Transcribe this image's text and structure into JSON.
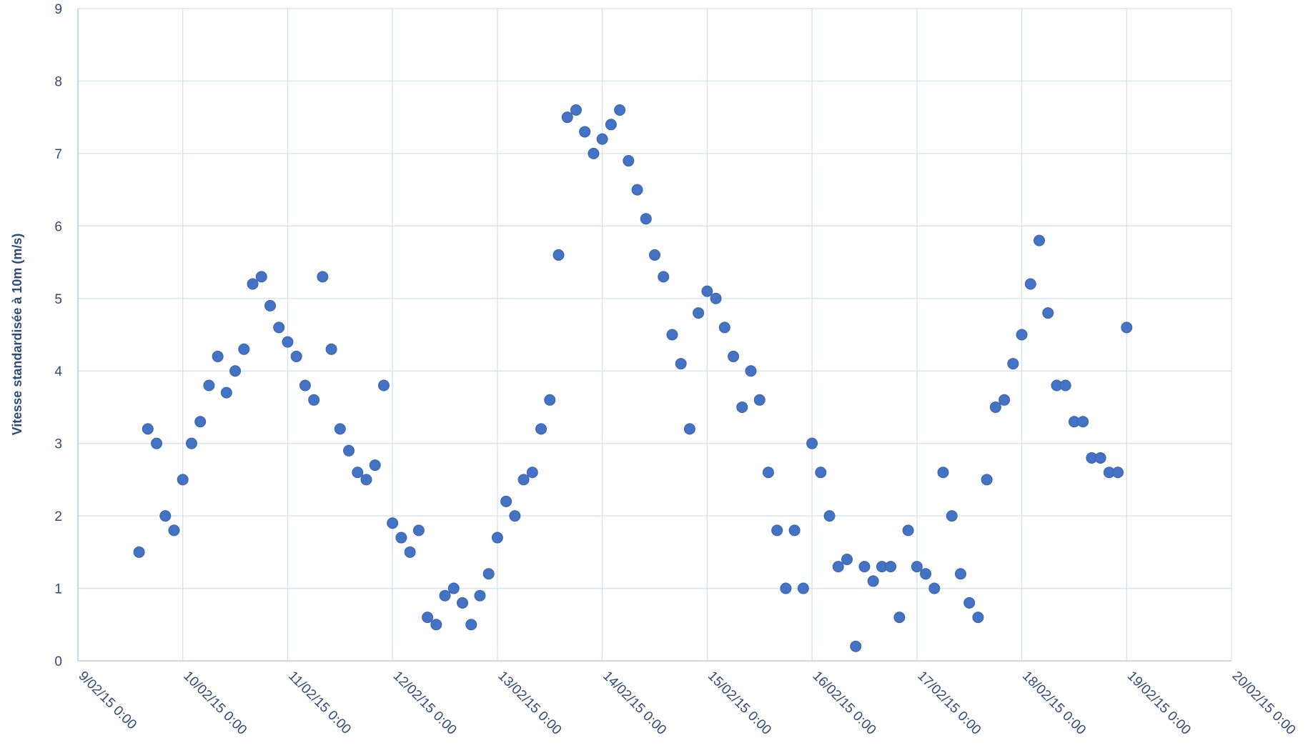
{
  "chart_data": {
    "type": "scatter",
    "y_label": "Vitesse standardisée à 10m (m/s)",
    "color": "#4472c4",
    "grid": true,
    "ylim": [
      0,
      9
    ],
    "yticks": [
      0,
      1,
      2,
      3,
      4,
      5,
      6,
      7,
      8,
      9
    ],
    "xlim": [
      "2015-02-09T00:00",
      "2015-02-20T00:00"
    ],
    "xticks": [
      {
        "value": "2015-02-09T00:00",
        "label": "9/02/15 0:00"
      },
      {
        "value": "2015-02-10T00:00",
        "label": "10/02/15 0:00"
      },
      {
        "value": "2015-02-11T00:00",
        "label": "11/02/15 0:00"
      },
      {
        "value": "2015-02-12T00:00",
        "label": "12/02/15 0:00"
      },
      {
        "value": "2015-02-13T00:00",
        "label": "13/02/15 0:00"
      },
      {
        "value": "2015-02-14T00:00",
        "label": "14/02/15 0:00"
      },
      {
        "value": "2015-02-15T00:00",
        "label": "15/02/15 0:00"
      },
      {
        "value": "2015-02-16T00:00",
        "label": "16/02/15 0:00"
      },
      {
        "value": "2015-02-17T00:00",
        "label": "17/02/15 0:00"
      },
      {
        "value": "2015-02-18T00:00",
        "label": "18/02/15 0:00"
      },
      {
        "value": "2015-02-19T00:00",
        "label": "19/02/15 0:00"
      },
      {
        "value": "2015-02-20T00:00",
        "label": "20/02/15 0:00"
      }
    ],
    "x": [
      "2015-02-09T14:00",
      "2015-02-09T16:00",
      "2015-02-09T18:00",
      "2015-02-09T20:00",
      "2015-02-09T22:00",
      "2015-02-10T00:00",
      "2015-02-10T02:00",
      "2015-02-10T04:00",
      "2015-02-10T06:00",
      "2015-02-10T08:00",
      "2015-02-10T10:00",
      "2015-02-10T12:00",
      "2015-02-10T14:00",
      "2015-02-10T16:00",
      "2015-02-10T18:00",
      "2015-02-10T20:00",
      "2015-02-10T22:00",
      "2015-02-11T00:00",
      "2015-02-11T02:00",
      "2015-02-11T04:00",
      "2015-02-11T06:00",
      "2015-02-11T08:00",
      "2015-02-11T10:00",
      "2015-02-11T12:00",
      "2015-02-11T14:00",
      "2015-02-11T16:00",
      "2015-02-11T18:00",
      "2015-02-11T20:00",
      "2015-02-11T22:00",
      "2015-02-12T00:00",
      "2015-02-12T02:00",
      "2015-02-12T04:00",
      "2015-02-12T06:00",
      "2015-02-12T08:00",
      "2015-02-12T10:00",
      "2015-02-12T12:00",
      "2015-02-12T14:00",
      "2015-02-12T16:00",
      "2015-02-12T18:00",
      "2015-02-12T20:00",
      "2015-02-12T22:00",
      "2015-02-13T00:00",
      "2015-02-13T02:00",
      "2015-02-13T04:00",
      "2015-02-13T06:00",
      "2015-02-13T08:00",
      "2015-02-13T10:00",
      "2015-02-13T12:00",
      "2015-02-13T14:00",
      "2015-02-13T16:00",
      "2015-02-13T18:00",
      "2015-02-13T20:00",
      "2015-02-13T22:00",
      "2015-02-14T00:00",
      "2015-02-14T02:00",
      "2015-02-14T04:00",
      "2015-02-14T06:00",
      "2015-02-14T08:00",
      "2015-02-14T10:00",
      "2015-02-14T12:00",
      "2015-02-14T14:00",
      "2015-02-14T16:00",
      "2015-02-14T18:00",
      "2015-02-14T20:00",
      "2015-02-14T22:00",
      "2015-02-15T00:00",
      "2015-02-15T02:00",
      "2015-02-15T04:00",
      "2015-02-15T06:00",
      "2015-02-15T08:00",
      "2015-02-15T10:00",
      "2015-02-15T12:00",
      "2015-02-15T14:00",
      "2015-02-15T16:00",
      "2015-02-15T18:00",
      "2015-02-15T20:00",
      "2015-02-15T22:00",
      "2015-02-16T00:00",
      "2015-02-16T02:00",
      "2015-02-16T04:00",
      "2015-02-16T06:00",
      "2015-02-16T08:00",
      "2015-02-16T10:00",
      "2015-02-16T12:00",
      "2015-02-16T14:00",
      "2015-02-16T16:00",
      "2015-02-16T18:00",
      "2015-02-16T20:00",
      "2015-02-16T22:00",
      "2015-02-17T00:00",
      "2015-02-17T02:00",
      "2015-02-17T04:00",
      "2015-02-17T06:00",
      "2015-02-17T08:00",
      "2015-02-17T10:00",
      "2015-02-17T12:00",
      "2015-02-17T14:00",
      "2015-02-17T16:00",
      "2015-02-17T18:00",
      "2015-02-17T20:00",
      "2015-02-17T22:00",
      "2015-02-18T00:00",
      "2015-02-18T02:00",
      "2015-02-18T04:00",
      "2015-02-18T06:00",
      "2015-02-18T08:00",
      "2015-02-18T10:00",
      "2015-02-18T12:00",
      "2015-02-18T14:00",
      "2015-02-18T16:00",
      "2015-02-18T18:00",
      "2015-02-18T20:00",
      "2015-02-18T22:00",
      "2015-02-19T00:00"
    ],
    "values": [
      1.5,
      3.2,
      3.0,
      2.0,
      1.8,
      2.5,
      3.0,
      3.3,
      3.8,
      4.2,
      3.7,
      4.0,
      4.3,
      5.2,
      5.3,
      4.9,
      4.6,
      4.4,
      4.2,
      3.8,
      3.6,
      5.3,
      4.3,
      3.2,
      2.9,
      2.6,
      2.5,
      2.7,
      3.8,
      1.9,
      1.7,
      1.5,
      1.8,
      0.6,
      0.5,
      0.9,
      1.0,
      0.8,
      0.5,
      0.9,
      1.2,
      1.7,
      2.2,
      2.0,
      2.5,
      2.6,
      3.2,
      3.6,
      5.6,
      7.5,
      7.6,
      7.3,
      7.0,
      7.2,
      7.4,
      7.6,
      6.9,
      6.5,
      6.1,
      5.6,
      5.3,
      4.5,
      4.1,
      3.2,
      4.8,
      5.1,
      5.0,
      4.6,
      4.2,
      3.5,
      4.0,
      3.6,
      2.6,
      1.8,
      1.0,
      1.8,
      1.0,
      3.0,
      2.6,
      2.0,
      1.3,
      1.4,
      0.2,
      1.3,
      1.1,
      1.3,
      1.3,
      0.6,
      1.8,
      1.3,
      1.2,
      1.0,
      2.6,
      2.0,
      1.2,
      0.8,
      0.6,
      2.5,
      3.5,
      3.6,
      4.1,
      4.5,
      5.2,
      5.8,
      4.8,
      3.8,
      3.8,
      3.3,
      3.3,
      2.8,
      2.8,
      2.6,
      2.6,
      4.6
    ]
  }
}
